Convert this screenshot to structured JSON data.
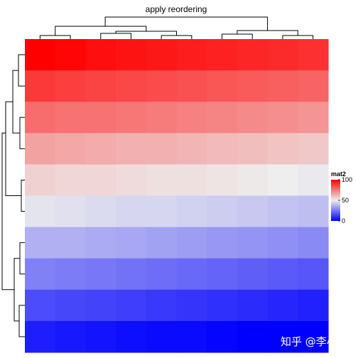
{
  "chart_data": {
    "type": "heatmap",
    "title": "apply reordering",
    "rows": 10,
    "cols": 10,
    "values": [
      [
        100,
        99,
        97,
        96,
        95,
        94,
        93,
        92,
        91,
        90
      ],
      [
        88,
        87,
        86,
        85,
        84,
        83,
        82,
        81,
        80,
        79
      ],
      [
        77,
        76,
        76,
        75,
        74,
        73,
        72,
        71,
        70,
        69
      ],
      [
        66,
        65,
        64,
        63,
        63,
        62,
        61,
        60,
        59,
        58
      ],
      [
        56,
        55,
        55,
        54,
        53,
        53,
        52,
        51,
        50,
        49
      ],
      [
        48,
        47,
        46,
        45,
        45,
        44,
        43,
        42,
        41,
        40
      ],
      [
        37,
        37,
        36,
        35,
        34,
        33,
        32,
        31,
        30,
        29
      ],
      [
        27,
        26,
        25,
        24,
        23,
        22,
        21,
        20,
        19,
        18
      ],
      [
        16,
        15,
        14,
        13,
        12,
        11,
        10,
        9,
        8,
        7
      ],
      [
        6,
        5,
        4,
        3,
        2,
        2,
        1,
        0,
        0,
        0
      ]
    ],
    "color_scale": {
      "low": "#0000ff",
      "mid": "#eeeeee",
      "high": "#ff0000",
      "domain": [
        0,
        50,
        100
      ]
    },
    "legend": {
      "title": "mat2",
      "ticks": [
        0,
        50,
        100
      ],
      "placement": "right"
    },
    "column_dendrogram": true,
    "row_dendrogram": true
  },
  "watermark": "知乎 @李小月"
}
